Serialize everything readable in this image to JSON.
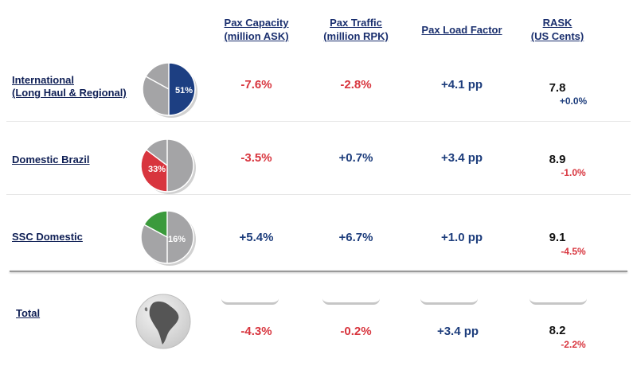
{
  "headers": {
    "capacity": [
      "Pax Capacity",
      "(million ASK)"
    ],
    "traffic": [
      "Pax Traffic",
      "(million RPK)"
    ],
    "load_factor": [
      "Pax Load Factor"
    ],
    "rask": [
      "RASK",
      "(US Cents)"
    ]
  },
  "rows": [
    {
      "label": [
        "International",
        "(Long Haul & Regional)"
      ],
      "share_label": "51%",
      "share_pct": 51,
      "share_color": "#1d3f82",
      "capacity": "-7.6%",
      "traffic": "-2.8%",
      "load_factor": "+4.1 pp",
      "rask": "7.8",
      "rask_change": "+0.0%"
    },
    {
      "label": [
        "Domestic Brazil"
      ],
      "share_label": "33%",
      "share_pct": 33,
      "share_color": "#d8353e",
      "capacity": "-3.5%",
      "traffic": "+0.7%",
      "load_factor": "+3.4 pp",
      "rask": "8.9",
      "rask_change": "-1.0%"
    },
    {
      "label": [
        "SSC Domestic"
      ],
      "share_label": "16%",
      "share_pct": 16,
      "share_color": "#3b9a3c",
      "capacity": "+5.4%",
      "traffic": "+6.7%",
      "load_factor": "+1.0 pp",
      "rask": "9.1",
      "rask_change": "-4.5%"
    }
  ],
  "total": {
    "label": "Total",
    "capacity": "-4.3%",
    "traffic": "-0.2%",
    "load_factor": "+3.4 pp",
    "rask": "8.2",
    "rask_change": "-2.2%"
  },
  "colors": {
    "negative": "#d8353e",
    "positive": "#1d3d7c",
    "pie_grey": "#a4a4a6"
  },
  "icons": [
    "globe-south-america-icon"
  ]
}
